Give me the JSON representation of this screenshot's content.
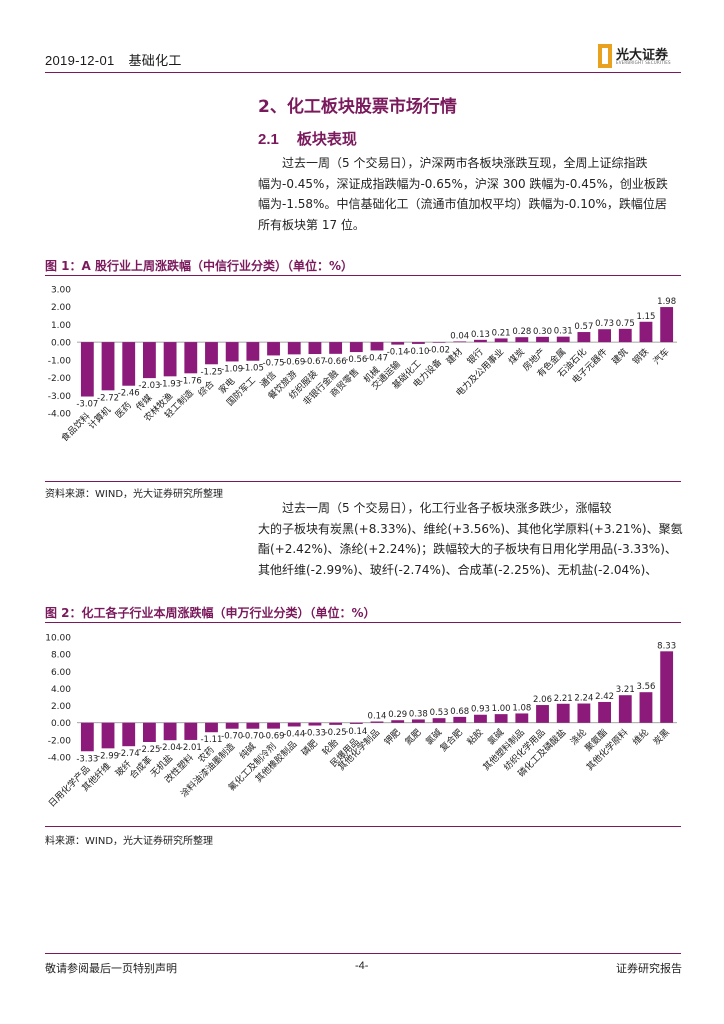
{
  "header": {
    "date": "2019-12-01",
    "section": "基础化工",
    "logo_text": "光大证券",
    "logo_sub": "EVERBRIGHT SECURITIES"
  },
  "headings": {
    "h2": "2、化工板块股票市场行情",
    "h3_num": "2.1",
    "h3_text": "板块表现"
  },
  "paragraph1": {
    "lines": [
      "过去一周（5 个交易日），沪深两市各板块涨跌互现，全周上证综指跌",
      "幅为-0.45%，深证成指跌幅为-0.65%，沪深 300 跌幅为-0.45%，创业板跌",
      "幅为-1.58%。中信基础化工（流通市值加权平均）跌幅为-0.10%，跌幅位居",
      "所有板块第 17 位。"
    ]
  },
  "figure1": {
    "title": "图 1：A 股行业上周涨跌幅（中信行业分类）（单位：%）",
    "source": "资料来源：WIND，光大证券研究所整理"
  },
  "paragraph2": {
    "lines": [
      "过去一周（5 个交易日），化工行业各子板块涨多跌少，涨幅较",
      "大的子板块有炭黑(+8.33%)、维纶(+3.56%)、其他化学原料(+3.21%)、聚氨",
      "酯(+2.42%)、涤纶(+2.24%)；跌幅较大的子板块有日用化学用品(-3.33%)、",
      "其他纤维(-2.99%)、玻纤(-2.74%)、合成革(-2.25%)、无机盐(-2.04%)、"
    ]
  },
  "figure2": {
    "title": "图 2：化工各子行业本周涨跌幅（申万行业分类）（单位：%）",
    "source": "料来源：WIND，光大证券研究所整理"
  },
  "chart_data": [
    {
      "type": "bar",
      "title": "图 1：A 股行业上周涨跌幅（中信行业分类）（单位：%）",
      "categories": [
        "食品饮料",
        "计算机",
        "医药",
        "传媒",
        "农林牧渔",
        "轻工制造",
        "综合",
        "家电",
        "国防军工",
        "通信",
        "餐饮旅游",
        "纺织服装",
        "非银行金融",
        "商贸零售",
        "机械",
        "交通运输",
        "基础化工",
        "电力设备",
        "建材",
        "银行",
        "电力及公用事业",
        "煤炭",
        "房地产",
        "有色金属",
        "石油石化",
        "电子元器件",
        "建筑",
        "钢铁",
        "汽车"
      ],
      "values": [
        -3.07,
        -2.72,
        -2.46,
        -2.03,
        -1.93,
        -1.76,
        -1.25,
        -1.09,
        -1.05,
        -0.75,
        -0.69,
        -0.67,
        -0.66,
        -0.56,
        -0.47,
        -0.14,
        -0.1,
        -0.02,
        0.04,
        0.13,
        0.21,
        0.28,
        0.3,
        0.31,
        0.57,
        0.73,
        0.75,
        1.15,
        1.98
      ],
      "labels": [
        "-3.07",
        "-2.72",
        "-2.46",
        "-2.03",
        "-1.93",
        "-1.76",
        "-1.25",
        "-1.09",
        "-1.05",
        "-0.75",
        "-0.69",
        "-0.67",
        "-0.66",
        "-0.56",
        "-0.47",
        "-0.14",
        "-0.10",
        "-0.02",
        "0.04",
        "0.13",
        "0.21",
        "0.28",
        "0.30",
        "0.31",
        "0.57",
        "0.73",
        "0.75",
        "1.15",
        "1.98"
      ],
      "yticks": [
        "3.00",
        "2.00",
        "1.00",
        "0.00",
        "-1.00",
        "-2.00",
        "-3.00",
        "-4.00"
      ],
      "ylim": [
        -4,
        3
      ],
      "color": "#8b1a7a",
      "grid": false
    },
    {
      "type": "bar",
      "title": "图 2：化工各子行业本周涨跌幅（申万行业分类）（单位：%）",
      "categories": [
        "日用化学产品",
        "其他纤维",
        "玻纤",
        "合成革",
        "无机盐",
        "改性塑料",
        "农药",
        "涂料油漆油墨制造",
        "纯碱",
        "氟化工及制冷剂",
        "其他橡胶制品",
        "磷肥",
        "轮胎",
        "民爆用品",
        "其他化学制品",
        "钾肥",
        "氮肥",
        "氯碱",
        "复合肥",
        "粘胶",
        "氯碱",
        "其他塑料制品",
        "纺织化学用品",
        "磷化工及磷酸盐",
        "涤纶",
        "聚氨酯",
        "其他化学原料",
        "维纶",
        "炭黑"
      ],
      "values": [
        -3.33,
        -2.99,
        -2.74,
        -2.25,
        -2.04,
        -2.01,
        -1.11,
        -0.7,
        -0.7,
        -0.69,
        -0.44,
        -0.33,
        -0.25,
        -0.14,
        0.14,
        0.29,
        0.38,
        0.53,
        0.68,
        0.93,
        1.0,
        1.08,
        2.06,
        2.21,
        2.24,
        2.42,
        3.21,
        3.56,
        8.33
      ],
      "labels": [
        "-3.33",
        "-2.99",
        "-2.74",
        "-2.25",
        "-2.04",
        "-2.01",
        "-1.11",
        "-0.70",
        "-0.70",
        "-0.69",
        "-0.44",
        "-0.33",
        "-0.25",
        "-0.14",
        "0.14",
        "0.29",
        "0.38",
        "0.53",
        "0.68",
        "0.93",
        "1.00",
        "1.08",
        "2.06",
        "2.21",
        "2.24",
        "2.42",
        "3.21",
        "3.56",
        "8.33"
      ],
      "yticks": [
        "10.00",
        "8.00",
        "6.00",
        "4.00",
        "2.00",
        "0.00",
        "-2.00",
        "-4.00"
      ],
      "ylim": [
        -4,
        10
      ],
      "color": "#8b1a7a",
      "grid": false
    }
  ],
  "footer": {
    "disclaimer": "敬请参阅最后一页特别声明",
    "page": "-4-",
    "report_type": "证券研究报告"
  }
}
